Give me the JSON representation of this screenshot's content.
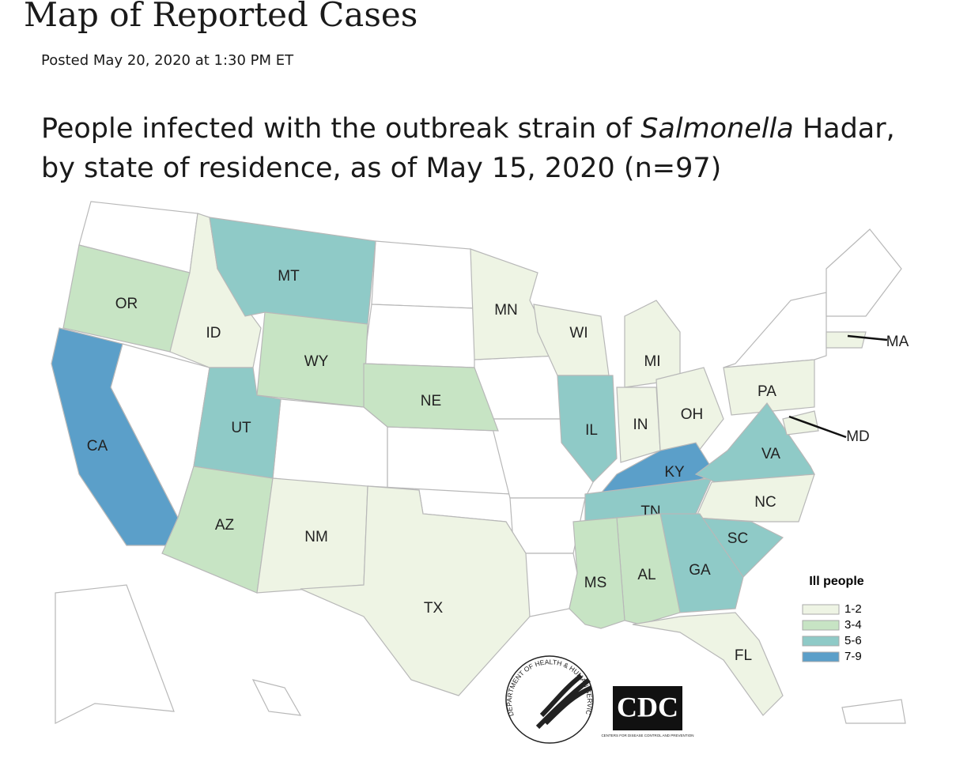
{
  "header": {
    "title": "Map of Reported Cases",
    "posted": "Posted May 20, 2020 at 1:30 PM ET"
  },
  "caption": {
    "line1": {
      "before": "People infected with the outbreak strain of ",
      "italic": "Salmonella",
      "after": " Hadar,"
    },
    "line2": "by state of residence, as of May 15, 2020 (n=97)"
  },
  "map": {
    "states": [
      {
        "label": "OR",
        "bin": 1
      },
      {
        "label": "CA",
        "bin": 3
      },
      {
        "label": "ID",
        "bin": 0
      },
      {
        "label": "MT",
        "bin": 2
      },
      {
        "label": "WY",
        "bin": 1
      },
      {
        "label": "UT",
        "bin": 2
      },
      {
        "label": "AZ",
        "bin": 1
      },
      {
        "label": "NM",
        "bin": 0
      },
      {
        "label": "NE",
        "bin": 1
      },
      {
        "label": "TX",
        "bin": 0
      },
      {
        "label": "MN",
        "bin": 0
      },
      {
        "label": "WI",
        "bin": 0
      },
      {
        "label": "MI",
        "bin": 0
      },
      {
        "label": "IL",
        "bin": 2
      },
      {
        "label": "IN",
        "bin": 0
      },
      {
        "label": "OH",
        "bin": 0
      },
      {
        "label": "PA",
        "bin": 0
      },
      {
        "label": "KY",
        "bin": 3
      },
      {
        "label": "TN",
        "bin": 2
      },
      {
        "label": "VA",
        "bin": 2
      },
      {
        "label": "NC",
        "bin": 0
      },
      {
        "label": "SC",
        "bin": 2
      },
      {
        "label": "GA",
        "bin": 2
      },
      {
        "label": "AL",
        "bin": 1
      },
      {
        "label": "MS",
        "bin": 1
      },
      {
        "label": "FL",
        "bin": 0
      },
      {
        "label": "MA",
        "bin": 0
      },
      {
        "label": "MD",
        "bin": 0
      }
    ],
    "legend": {
      "title": "Ill people",
      "bins": [
        {
          "label": "1-2",
          "color": "#eef4e4"
        },
        {
          "label": "3-4",
          "color": "#c7e4c4"
        },
        {
          "label": "5-6",
          "color": "#8fcac7"
        },
        {
          "label": "7-9",
          "color": "#5b9fc9"
        }
      ]
    }
  },
  "logos": {
    "hhs": "DEPARTMENT OF HEALTH & HUMAN SERVICES USA",
    "cdc": "CDC",
    "cdc_sub": "CENTERS FOR DISEASE CONTROL AND PREVENTION"
  }
}
